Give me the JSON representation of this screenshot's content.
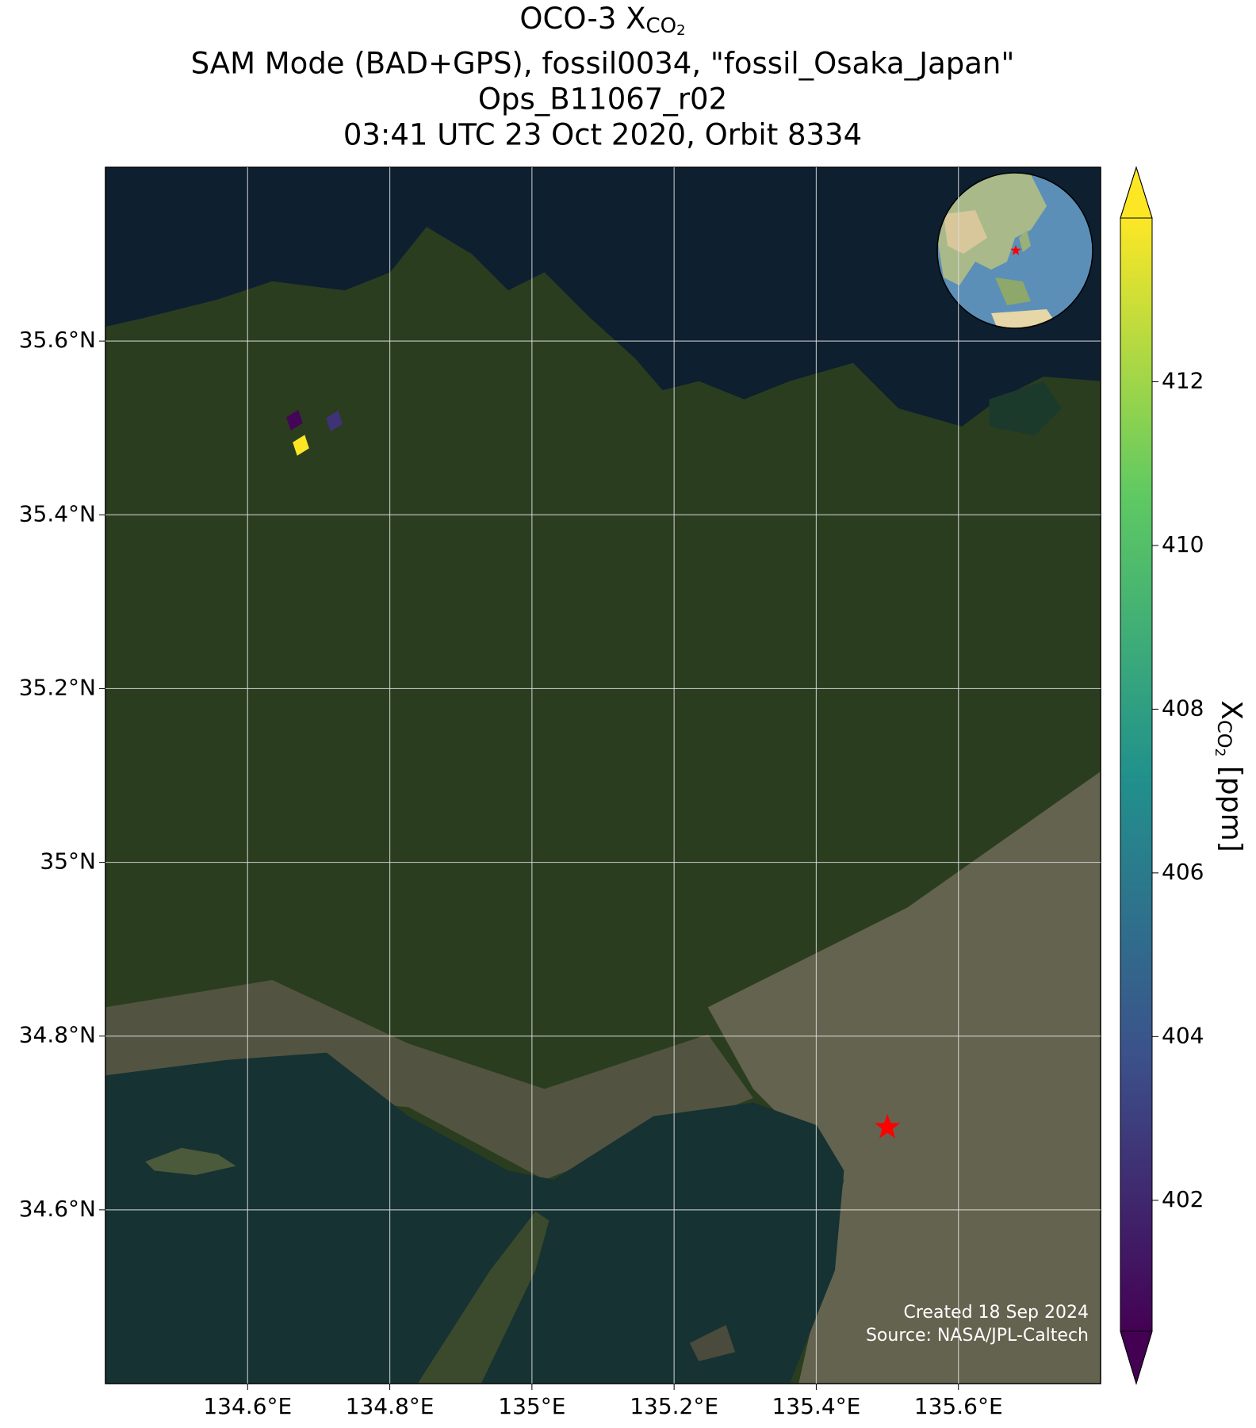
{
  "chart_data": {
    "type": "scatter",
    "title_parts": {
      "symbol": "OCO-3 X",
      "sub": "CO",
      "subsub": "2"
    },
    "title_lines": [
      "SAM Mode (BAD+GPS), fossil0034, \"fossil_Osaka_Japan\"",
      "Ops_B11067_r02",
      "03:41 UTC 23 Oct 2020, Orbit 8334"
    ],
    "xlim": [
      134.4,
      135.8
    ],
    "ylim": [
      34.4,
      35.8
    ],
    "xticks": [
      {
        "value": 134.6,
        "label": "134.6°E"
      },
      {
        "value": 134.8,
        "label": "134.8°E"
      },
      {
        "value": 135,
        "label": "135°E"
      },
      {
        "value": 135.2,
        "label": "135.2°E"
      },
      {
        "value": 135.4,
        "label": "135.4°E"
      },
      {
        "value": 135.6,
        "label": "135.6°E"
      }
    ],
    "yticks": [
      {
        "value": 35.6,
        "label": "35.6°N"
      },
      {
        "value": 35.4,
        "label": "35.4°N"
      },
      {
        "value": 35.2,
        "label": "35.2°N"
      },
      {
        "value": 35,
        "label": "35°N"
      },
      {
        "value": 34.8,
        "label": "34.8°N"
      },
      {
        "value": 34.6,
        "label": "34.6°N"
      }
    ],
    "grid": true,
    "x": [
      134.666,
      134.722,
      134.675
    ],
    "y": [
      35.509,
      35.508,
      35.48
    ],
    "color_values": [
      400.6,
      402.5,
      414.0
    ],
    "colormap": "viridis",
    "clim": [
      400.4,
      414
    ],
    "cticks": [
      402,
      404,
      406,
      408,
      410,
      412
    ],
    "colorbar_label": {
      "symbol": "X",
      "sub": "CO",
      "subsub": "2",
      "unit": " [ppm]"
    },
    "target": {
      "lon": 135.5,
      "lat": 34.695,
      "color": "#ff0000"
    },
    "credits": [
      "Created 18 Sep 2024",
      "Source: NASA/JPL-Caltech"
    ]
  }
}
